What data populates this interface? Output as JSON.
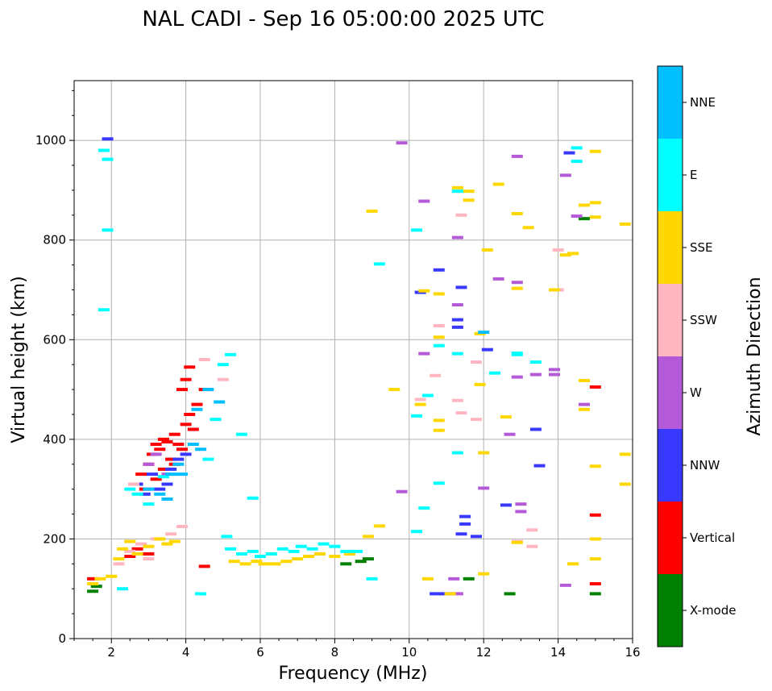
{
  "chart_data": {
    "type": "scatter",
    "title": "NAL CADI - Sep 16 05:00:00 2025 UTC",
    "xlabel": "Frequency (MHz)",
    "ylabel": "Virtual height (km)",
    "xlim": [
      1,
      16
    ],
    "ylim": [
      0,
      1120
    ],
    "xticks": [
      2,
      4,
      6,
      8,
      10,
      12,
      14,
      16
    ],
    "yticks": [
      0,
      200,
      400,
      600,
      800,
      1000
    ],
    "grid": true,
    "colorbar": {
      "label": "Azimuth Direction",
      "position": "right",
      "categories": [
        {
          "name": "X-mode",
          "color": "#008000"
        },
        {
          "name": "Vertical",
          "color": "#ff0000"
        },
        {
          "name": "NNW",
          "color": "#3838ff"
        },
        {
          "name": "W",
          "color": "#b45ad8"
        },
        {
          "name": "SSW",
          "color": "#ffb6c1"
        },
        {
          "name": "SSE",
          "color": "#ffd700"
        },
        {
          "name": "E",
          "color": "#00ffff"
        },
        {
          "name": "NNE",
          "color": "#00bfff"
        }
      ]
    },
    "marker": "short horizontal dash",
    "series": [
      {
        "name": "X-mode",
        "points": [
          [
            1.5,
            95
          ],
          [
            1.6,
            105
          ],
          [
            8.3,
            150
          ],
          [
            8.7,
            155
          ],
          [
            8.9,
            160
          ],
          [
            12.7,
            90
          ],
          [
            14.7,
            843
          ],
          [
            15.0,
            90
          ],
          [
            11.6,
            120
          ]
        ]
      },
      {
        "name": "Vertical",
        "points": [
          [
            1.5,
            120
          ],
          [
            2.5,
            165
          ],
          [
            2.7,
            180
          ],
          [
            3.0,
            170
          ],
          [
            4.5,
            145
          ],
          [
            2.8,
            330
          ],
          [
            2.9,
            300
          ],
          [
            3.0,
            350
          ],
          [
            3.1,
            370
          ],
          [
            3.2,
            320
          ],
          [
            3.3,
            380
          ],
          [
            3.4,
            340
          ],
          [
            3.5,
            395
          ],
          [
            3.6,
            360
          ],
          [
            3.7,
            410
          ],
          [
            3.8,
            390
          ],
          [
            3.9,
            380
          ],
          [
            4.0,
            430
          ],
          [
            4.1,
            450
          ],
          [
            4.2,
            420
          ],
          [
            3.9,
            500
          ],
          [
            4.0,
            520
          ],
          [
            4.1,
            545
          ],
          [
            4.3,
            470
          ],
          [
            4.5,
            500
          ],
          [
            3.4,
            400
          ],
          [
            3.7,
            350
          ],
          [
            3.2,
            390
          ],
          [
            15.0,
            505
          ],
          [
            15.0,
            248
          ],
          [
            15.0,
            110
          ]
        ]
      },
      {
        "name": "NNW",
        "points": [
          [
            1.9,
            1003
          ],
          [
            2.7,
            310
          ],
          [
            2.9,
            290
          ],
          [
            3.1,
            330
          ],
          [
            3.3,
            300
          ],
          [
            3.5,
            310
          ],
          [
            3.6,
            340
          ],
          [
            3.8,
            360
          ],
          [
            4.0,
            370
          ],
          [
            10.8,
            740
          ],
          [
            11.4,
            705
          ],
          [
            11.3,
            625
          ],
          [
            11.3,
            640
          ],
          [
            11.5,
            245
          ],
          [
            11.5,
            230
          ],
          [
            11.4,
            210
          ],
          [
            10.3,
            695
          ],
          [
            11.8,
            205
          ],
          [
            12.1,
            580
          ],
          [
            13.4,
            420
          ],
          [
            13.5,
            347
          ],
          [
            14.3,
            975
          ],
          [
            12.6,
            268
          ],
          [
            10.7,
            90
          ],
          [
            11.0,
            90
          ]
        ]
      },
      {
        "name": "W",
        "points": [
          [
            3.0,
            350
          ],
          [
            3.2,
            370
          ],
          [
            3.5,
            330
          ],
          [
            10.4,
            878
          ],
          [
            10.4,
            572
          ],
          [
            11.3,
            670
          ],
          [
            11.3,
            805
          ],
          [
            12.0,
            302
          ],
          [
            12.4,
            722
          ],
          [
            12.9,
            968
          ],
          [
            12.9,
            715
          ],
          [
            12.9,
            525
          ],
          [
            12.7,
            410
          ],
          [
            13.0,
            270
          ],
          [
            13.0,
            255
          ],
          [
            13.4,
            530
          ],
          [
            13.9,
            540
          ],
          [
            13.9,
            530
          ],
          [
            14.2,
            930
          ],
          [
            14.5,
            848
          ],
          [
            14.7,
            470
          ],
          [
            14.2,
            107
          ],
          [
            11.2,
            120
          ],
          [
            11.3,
            90
          ],
          [
            9.8,
            295
          ],
          [
            9.8,
            995
          ]
        ]
      },
      {
        "name": "SSW",
        "points": [
          [
            2.2,
            150
          ],
          [
            2.5,
            175
          ],
          [
            2.6,
            310
          ],
          [
            2.8,
            190
          ],
          [
            3.0,
            160
          ],
          [
            3.2,
            200
          ],
          [
            3.6,
            210
          ],
          [
            3.9,
            225
          ],
          [
            4.5,
            560
          ],
          [
            4.8,
            440
          ],
          [
            5.0,
            520
          ],
          [
            10.7,
            528
          ],
          [
            10.8,
            628
          ],
          [
            11.3,
            478
          ],
          [
            11.4,
            453
          ],
          [
            11.8,
            440
          ],
          [
            11.8,
            555
          ],
          [
            12.9,
            195
          ],
          [
            13.3,
            218
          ],
          [
            13.3,
            185
          ],
          [
            14.0,
            700
          ],
          [
            14.0,
            780
          ],
          [
            10.3,
            480
          ],
          [
            11.4,
            850
          ]
        ]
      },
      {
        "name": "SSE",
        "points": [
          [
            1.5,
            110
          ],
          [
            1.7,
            120
          ],
          [
            2.0,
            125
          ],
          [
            2.2,
            160
          ],
          [
            2.3,
            180
          ],
          [
            2.5,
            195
          ],
          [
            2.7,
            170
          ],
          [
            3.0,
            185
          ],
          [
            3.3,
            200
          ],
          [
            3.5,
            190
          ],
          [
            3.7,
            195
          ],
          [
            5.3,
            155
          ],
          [
            5.6,
            150
          ],
          [
            5.9,
            155
          ],
          [
            6.1,
            150
          ],
          [
            6.4,
            150
          ],
          [
            6.7,
            155
          ],
          [
            7.0,
            160
          ],
          [
            7.3,
            165
          ],
          [
            7.6,
            170
          ],
          [
            8.0,
            165
          ],
          [
            8.4,
            170
          ],
          [
            8.9,
            205
          ],
          [
            9.0,
            858
          ],
          [
            9.2,
            226
          ],
          [
            9.6,
            500
          ],
          [
            10.3,
            470
          ],
          [
            10.4,
            698
          ],
          [
            10.5,
            120
          ],
          [
            10.8,
            692
          ],
          [
            10.8,
            605
          ],
          [
            10.8,
            418
          ],
          [
            10.8,
            438
          ],
          [
            11.3,
            905
          ],
          [
            11.6,
            898
          ],
          [
            11.6,
            880
          ],
          [
            11.9,
            510
          ],
          [
            11.9,
            612
          ],
          [
            12.0,
            373
          ],
          [
            12.0,
            130
          ],
          [
            12.1,
            780
          ],
          [
            12.4,
            912
          ],
          [
            12.6,
            445
          ],
          [
            12.9,
            853
          ],
          [
            12.9,
            703
          ],
          [
            12.9,
            193
          ],
          [
            13.2,
            825
          ],
          [
            13.9,
            700
          ],
          [
            14.2,
            770
          ],
          [
            14.4,
            150
          ],
          [
            14.4,
            773
          ],
          [
            14.7,
            870
          ],
          [
            14.7,
            518
          ],
          [
            14.7,
            460
          ],
          [
            15.0,
            978
          ],
          [
            15.0,
            875
          ],
          [
            15.0,
            846
          ],
          [
            15.0,
            346
          ],
          [
            15.0,
            200
          ],
          [
            15.0,
            160
          ],
          [
            15.8,
            832
          ],
          [
            15.8,
            370
          ],
          [
            15.8,
            310
          ],
          [
            11.1,
            90
          ]
        ]
      },
      {
        "name": "E",
        "points": [
          [
            1.8,
            660
          ],
          [
            1.8,
            980
          ],
          [
            1.9,
            820
          ],
          [
            1.9,
            962
          ],
          [
            2.3,
            100
          ],
          [
            2.5,
            300
          ],
          [
            2.7,
            290
          ],
          [
            3.0,
            270
          ],
          [
            3.4,
            325
          ],
          [
            4.4,
            90
          ],
          [
            4.6,
            360
          ],
          [
            4.8,
            440
          ],
          [
            5.0,
            550
          ],
          [
            5.2,
            570
          ],
          [
            5.5,
            410
          ],
          [
            5.1,
            205
          ],
          [
            5.2,
            180
          ],
          [
            5.5,
            170
          ],
          [
            5.8,
            175
          ],
          [
            6.0,
            165
          ],
          [
            6.3,
            170
          ],
          [
            6.6,
            180
          ],
          [
            6.9,
            175
          ],
          [
            7.1,
            185
          ],
          [
            7.4,
            180
          ],
          [
            7.7,
            190
          ],
          [
            8.0,
            185
          ],
          [
            8.3,
            175
          ],
          [
            8.6,
            175
          ],
          [
            5.8,
            282
          ],
          [
            9.2,
            752
          ],
          [
            10.2,
            820
          ],
          [
            10.2,
            447
          ],
          [
            10.4,
            262
          ],
          [
            10.5,
            488
          ],
          [
            10.8,
            312
          ],
          [
            10.8,
            588
          ],
          [
            11.3,
            572
          ],
          [
            11.3,
            898
          ],
          [
            11.3,
            373
          ],
          [
            12.3,
            533
          ],
          [
            12.9,
            573
          ],
          [
            12.9,
            570
          ],
          [
            13.4,
            555
          ],
          [
            14.5,
            958
          ],
          [
            14.5,
            985
          ],
          [
            10.2,
            215
          ],
          [
            9.0,
            120
          ]
        ]
      },
      {
        "name": "NNE",
        "points": [
          [
            3.0,
            300
          ],
          [
            3.3,
            290
          ],
          [
            3.5,
            280
          ],
          [
            3.6,
            330
          ],
          [
            3.8,
            350
          ],
          [
            3.9,
            330
          ],
          [
            4.2,
            390
          ],
          [
            4.4,
            380
          ],
          [
            4.3,
            460
          ],
          [
            4.6,
            500
          ],
          [
            4.9,
            475
          ],
          [
            12.0,
            615
          ]
        ]
      }
    ]
  }
}
